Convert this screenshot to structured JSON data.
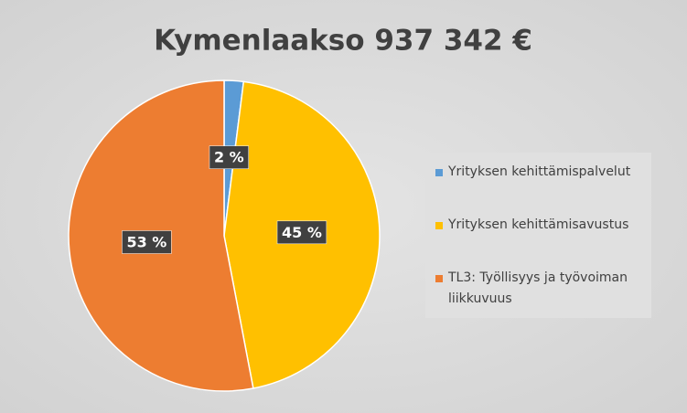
{
  "chart_data": {
    "type": "pie",
    "title": "Kymenlaakso 937 342 €",
    "categories": [
      "Yrityksen kehittämispalvelut",
      "Yrityksen kehittämisavustus",
      "TL3: Työllisyys ja työvoiman liikkuvuus"
    ],
    "values": [
      2,
      45,
      53
    ],
    "value_labels": [
      "2 %",
      "45 %",
      "53 %"
    ],
    "colors": [
      "#5b9bd5",
      "#ffc000",
      "#ed7d31"
    ],
    "legend": "right"
  }
}
